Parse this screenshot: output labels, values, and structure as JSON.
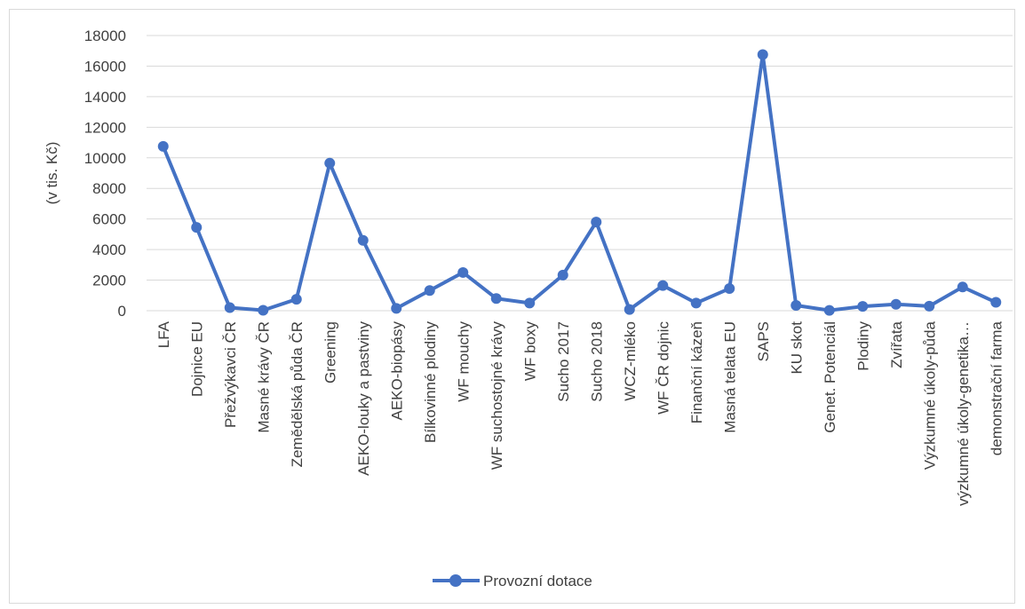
{
  "chart_data": {
    "type": "line",
    "title": "",
    "xlabel": "",
    "ylabel": "(v tis. Kč)",
    "ylim": [
      0,
      18000
    ],
    "yticks": [
      0,
      2000,
      4000,
      6000,
      8000,
      10000,
      12000,
      14000,
      16000,
      18000
    ],
    "grid": true,
    "legend_position": "bottom",
    "categories": [
      "LFA",
      "Dojnice EU",
      "Přežvýkavci ČR",
      "Masné krávy ČR",
      "Zemědělská půda ČR",
      "Greening",
      "AEKO-louky a pastviny",
      "AEKO-biopásy",
      "Bílkovinné plodiny",
      "WF mouchy",
      "WF suchostojné krávy",
      "WF boxy",
      "Sucho 2017",
      "Sucho 2018",
      "WCZ-mléko",
      "WF ČR dojnic",
      "Finanční kázeň",
      "Masná telata EU",
      "SAPS",
      "KU skot",
      "Genet. Potenciál",
      "Plodiny",
      "Zvířata",
      "Výzkumné úkoly-půda",
      "výzkumné úkoly-genetika…",
      "demonstrační farma"
    ],
    "series": [
      {
        "name": "Provozní dotace",
        "color": "#4472c4",
        "values": [
          10750,
          5450,
          200,
          30,
          750,
          9650,
          4600,
          150,
          1320,
          2500,
          800,
          500,
          2330,
          5800,
          80,
          1650,
          500,
          1450,
          16750,
          350,
          20,
          280,
          420,
          300,
          1550,
          550
        ]
      }
    ]
  }
}
